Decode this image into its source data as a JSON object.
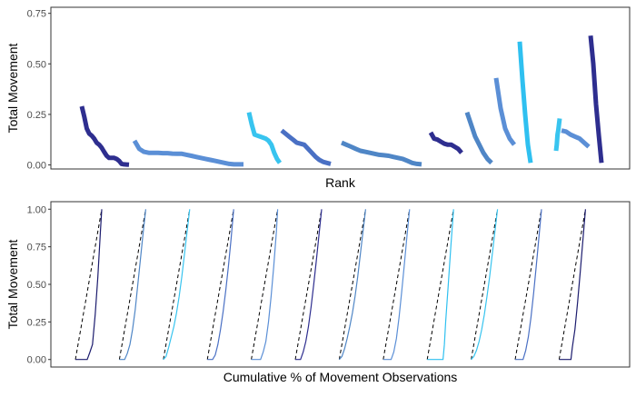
{
  "colors": {
    "dark_navy": "#2e2e8f",
    "steel_blue": "#5b8fd6",
    "sky_blue": "#38c4ef",
    "mid_blue": "#4a70c4",
    "bright_cyan": "#2fc0f0",
    "cornflower": "#4f86c6",
    "navy_line": "#1c1c6e",
    "diagonal": "#000000",
    "panel_border": "#333333"
  },
  "chart_data": [
    {
      "type": "line",
      "panel": "top",
      "xlabel": "Rank",
      "ylabel": "Total Movement",
      "ylim": [
        -0.02,
        0.78
      ],
      "yticks": [
        "0.00",
        "0.25",
        "0.50",
        "0.75"
      ],
      "ytick_values": [
        0,
        0.25,
        0.5,
        0.75
      ],
      "grid": false,
      "series": [
        {
          "color": "#2e2e8f",
          "values": [
            0.29,
            0.24,
            0.18,
            0.155,
            0.145,
            0.13,
            0.11,
            0.1,
            0.085,
            0.065,
            0.045,
            0.035,
            0.035,
            0.035,
            0.03,
            0.02,
            0.005,
            0.003,
            0.002,
            0.001
          ]
        },
        {
          "color": "#5b8fd6",
          "values": [
            0.12,
            0.08,
            0.065,
            0.06,
            0.06,
            0.06,
            0.058,
            0.058,
            0.056,
            0.055,
            0.055,
            0.05,
            0.045,
            0.04,
            0.035,
            0.03,
            0.025,
            0.02,
            0.015,
            0.01,
            0.005,
            0.003,
            0.003,
            0.003
          ]
        },
        {
          "color": "#38c4ef",
          "values": [
            0.26,
            0.2,
            0.15,
            0.145,
            0.14,
            0.135,
            0.13,
            0.12,
            0.1,
            0.06,
            0.03,
            0.01
          ]
        },
        {
          "color": "#4a70c4",
          "values": [
            0.17,
            0.155,
            0.14,
            0.125,
            0.11,
            0.105,
            0.1,
            0.08,
            0.06,
            0.04,
            0.025,
            0.015,
            0.01,
            0.005
          ]
        },
        {
          "color": "#4f86c6",
          "values": [
            0.11,
            0.1,
            0.09,
            0.08,
            0.07,
            0.065,
            0.06,
            0.055,
            0.05,
            0.048,
            0.045,
            0.04,
            0.035,
            0.03,
            0.02,
            0.01,
            0.005,
            0.003
          ]
        },
        {
          "color": "#2e2e8f",
          "values": [
            0.16,
            0.13,
            0.125,
            0.115,
            0.105,
            0.1,
            0.1,
            0.09,
            0.08,
            0.06
          ]
        },
        {
          "color": "#4f86c6",
          "values": [
            0.26,
            0.2,
            0.14,
            0.1,
            0.06,
            0.03,
            0.01
          ]
        },
        {
          "color": "#5b8fd6",
          "values": [
            0.43,
            0.28,
            0.18,
            0.13,
            0.1
          ]
        },
        {
          "color": "#2fc0f0",
          "values": [
            0.61,
            0.42,
            0.25,
            0.1,
            0.01
          ]
        },
        {
          "color": "#38c4ef",
          "values": [
            0.23,
            0.2,
            0.17,
            0.15,
            0.1,
            0.07
          ]
        },
        {
          "color": "#5b8fd6",
          "values": [
            0.17,
            0.165,
            0.15,
            0.14,
            0.13,
            0.11,
            0.09
          ]
        },
        {
          "color": "#2e2e8f",
          "values": [
            0.64,
            0.5,
            0.3,
            0.15,
            0.01
          ]
        }
      ]
    },
    {
      "type": "line",
      "panel": "bottom",
      "xlabel": "Cumulative % of Movement Observations",
      "ylabel": "Total Movement",
      "ylim": [
        -0.05,
        1.05
      ],
      "yticks": [
        "0.00",
        "0.25",
        "0.50",
        "0.75",
        "1.00"
      ],
      "ytick_values": [
        0,
        0.25,
        0.5,
        0.75,
        1.0
      ],
      "grid": false,
      "reference_line": "dashed diagonal (equality line) in each facet",
      "series": [
        {
          "color": "#1c1c6e",
          "x": [
            0,
            0.45,
            0.55,
            0.65,
            0.75,
            0.85,
            0.95,
            1.0
          ],
          "y": [
            0,
            0,
            0.05,
            0.1,
            0.3,
            0.55,
            0.85,
            1.0
          ]
        },
        {
          "color": "#4f86c6",
          "x": [
            0,
            0.2,
            0.3,
            0.4,
            0.5,
            0.6,
            0.7,
            0.8,
            0.9,
            1.0
          ],
          "y": [
            0,
            0,
            0.04,
            0.1,
            0.2,
            0.33,
            0.5,
            0.67,
            0.84,
            1.0
          ]
        },
        {
          "color": "#38c4ef",
          "x": [
            0,
            0.1,
            0.2,
            0.3,
            0.4,
            0.5,
            0.6,
            0.7,
            0.8,
            0.9,
            1.0
          ],
          "y": [
            0,
            0.02,
            0.08,
            0.15,
            0.22,
            0.31,
            0.42,
            0.55,
            0.7,
            0.85,
            1.0
          ]
        },
        {
          "color": "#4a70c4",
          "x": [
            0,
            0.2,
            0.3,
            0.4,
            0.5,
            0.6,
            0.7,
            0.8,
            0.9,
            1.0
          ],
          "y": [
            0,
            0,
            0.03,
            0.1,
            0.2,
            0.32,
            0.46,
            0.62,
            0.8,
            1.0
          ]
        },
        {
          "color": "#5b8fd6",
          "x": [
            0,
            0.35,
            0.45,
            0.55,
            0.65,
            0.75,
            0.85,
            0.95,
            1.0
          ],
          "y": [
            0,
            0,
            0.05,
            0.12,
            0.25,
            0.42,
            0.62,
            0.85,
            1.0
          ]
        },
        {
          "color": "#2e2e8f",
          "x": [
            0,
            0.2,
            0.3,
            0.4,
            0.5,
            0.6,
            0.7,
            0.8,
            0.9,
            1.0
          ],
          "y": [
            0,
            0,
            0.05,
            0.12,
            0.22,
            0.35,
            0.5,
            0.66,
            0.83,
            1.0
          ]
        },
        {
          "color": "#4f86c6",
          "x": [
            0,
            0.1,
            0.2,
            0.3,
            0.4,
            0.5,
            0.6,
            0.7,
            0.8,
            0.9,
            1.0
          ],
          "y": [
            0,
            0.02,
            0.07,
            0.14,
            0.22,
            0.31,
            0.42,
            0.55,
            0.7,
            0.85,
            1.0
          ]
        },
        {
          "color": "#5b8fd6",
          "x": [
            0,
            0.3,
            0.4,
            0.5,
            0.6,
            0.7,
            0.8,
            0.9,
            1.0
          ],
          "y": [
            0,
            0,
            0.05,
            0.14,
            0.28,
            0.45,
            0.63,
            0.82,
            1.0
          ]
        },
        {
          "color": "#2fc0f0",
          "x": [
            0,
            0.6,
            0.65,
            0.7,
            0.8,
            0.9,
            1.0
          ],
          "y": [
            0,
            0,
            0.1,
            0.25,
            0.5,
            0.76,
            1.0
          ]
        },
        {
          "color": "#38c4ef",
          "x": [
            0,
            0.1,
            0.2,
            0.3,
            0.4,
            0.5,
            0.6,
            0.7,
            0.8,
            0.9,
            1.0
          ],
          "y": [
            0,
            0.02,
            0.06,
            0.12,
            0.2,
            0.3,
            0.42,
            0.55,
            0.7,
            0.85,
            1.0
          ]
        },
        {
          "color": "#4a70c4",
          "x": [
            0,
            0.3,
            0.4,
            0.5,
            0.6,
            0.7,
            0.8,
            0.9,
            1.0
          ],
          "y": [
            0,
            0,
            0.06,
            0.15,
            0.28,
            0.44,
            0.62,
            0.81,
            1.0
          ]
        },
        {
          "color": "#1c1c6e",
          "x": [
            0,
            0.45,
            0.5,
            0.6,
            0.7,
            0.8,
            0.9,
            1.0
          ],
          "y": [
            0,
            0,
            0.08,
            0.2,
            0.38,
            0.58,
            0.79,
            1.0
          ]
        }
      ]
    }
  ]
}
